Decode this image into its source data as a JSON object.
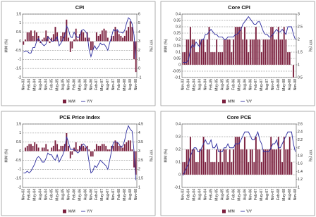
{
  "chart_data": [
    {
      "type": "bar",
      "title": "CPI",
      "y_label": "M/M (%)",
      "y2_label": "Y/Y (%)",
      "grid": true,
      "categories": [
        "Nov-03",
        null,
        null,
        "Feb-04",
        null,
        null,
        "May-04",
        null,
        null,
        "Aug-04",
        null,
        null,
        "Nov-04",
        null,
        null,
        "Feb-05",
        null,
        null,
        "May-05",
        null,
        null,
        "Aug-05",
        null,
        null,
        "Nov-05",
        null,
        null,
        "Feb-06",
        null,
        null,
        "May-06",
        null,
        null,
        "Aug-06",
        null,
        null,
        "Nov-06",
        null,
        null,
        "Feb-07",
        null,
        null,
        "May-07",
        null,
        null,
        "Aug-07",
        null,
        null,
        "Nov-07",
        null,
        null,
        "Feb-08",
        null,
        null,
        "May-08",
        null,
        null,
        "Aug-08",
        null,
        null,
        "Nov-08"
      ],
      "ylim": [
        -2,
        1.5
      ],
      "yticks": [
        -2,
        -1.5,
        -1,
        -0.5,
        0,
        0.5,
        1,
        1.5
      ],
      "y2lim": [
        -1,
        6
      ],
      "y2ticks": [
        -1,
        0,
        1,
        2,
        3,
        4,
        5,
        6
      ],
      "series": [
        {
          "name": "M/M",
          "type": "bar",
          "color": "#7a1f3d",
          "values": [
            -0.2,
            0.1,
            0.5,
            0.5,
            0.6,
            0.3,
            0.6,
            0.5,
            0.3,
            -0.1,
            0.1,
            0.2,
            0.6,
            0.3,
            -0.1,
            0.2,
            0.4,
            0.8,
            0.5,
            0.0,
            0.3,
            0.5,
            0.5,
            1.2,
            0.2,
            -0.6,
            -0.4,
            0.1,
            0.7,
            0.1,
            0.4,
            0.6,
            0.5,
            0.2,
            0.5,
            0.2,
            -0.5,
            -0.5,
            0.0,
            0.5,
            0.3,
            0.4,
            0.6,
            0.7,
            0.6,
            0.2,
            0.0,
            0.3,
            0.3,
            0.8,
            0.6,
            0.4,
            0.3,
            0.2,
            0.3,
            0.6,
            0.8,
            1.1,
            0.8,
            -1.0,
            -1.7
          ]
        },
        {
          "name": "Y/Y",
          "type": "line",
          "axis": "y2",
          "color": "#2b2b9e",
          "values": [
            1.8,
            1.9,
            1.9,
            1.7,
            1.7,
            2.3,
            2.3,
            3.0,
            3.3,
            3.0,
            2.7,
            2.5,
            2.7,
            3.5,
            3.3,
            3.0,
            3.0,
            3.2,
            3.5,
            2.5,
            2.8,
            3.2,
            3.6,
            4.7,
            4.3,
            3.5,
            3.4,
            4.0,
            3.6,
            3.4,
            3.5,
            4.2,
            4.3,
            4.1,
            3.8,
            2.1,
            1.3,
            2.0,
            2.5,
            2.1,
            2.4,
            2.8,
            2.6,
            2.7,
            2.4,
            2.0,
            2.8,
            3.5,
            4.3,
            4.1,
            4.3,
            4.0,
            4.0,
            3.9,
            4.2,
            5.0,
            5.6,
            5.4,
            4.9,
            3.7,
            1.1
          ]
        }
      ]
    },
    {
      "type": "bar",
      "title": "Core CPI",
      "y_label": "M/M (%)",
      "y2_label": "Y/Y (%)",
      "grid": true,
      "categories": [
        "Nov-03",
        null,
        null,
        "Feb-04",
        null,
        null,
        "May-04",
        null,
        null,
        "Aug-04",
        null,
        null,
        "Nov-04",
        null,
        null,
        "Feb-05",
        null,
        null,
        "May-05",
        null,
        null,
        "Aug-05",
        null,
        null,
        "Nov-05",
        null,
        null,
        "Feb-06",
        null,
        null,
        "May-06",
        null,
        null,
        "Aug-06",
        null,
        null,
        "Nov-06",
        null,
        null,
        "Feb-07",
        null,
        null,
        "May-07",
        null,
        null,
        "Aug-07",
        null,
        null,
        "Nov-07",
        null,
        null,
        "Feb-08",
        null,
        null,
        "May-08",
        null,
        null,
        "Aug-08",
        null,
        null,
        "Nov-08"
      ],
      "ylim": [
        -0.1,
        0.4
      ],
      "yticks": [
        -0.1,
        -0.05,
        0,
        0.05,
        0.1,
        0.15,
        0.2,
        0.25,
        0.3,
        0.35,
        0.4
      ],
      "y2lim": [
        0.5,
        3
      ],
      "y2ticks": [
        0.5,
        1,
        1.5,
        2,
        2.5,
        3
      ],
      "series": [
        {
          "name": "M/M",
          "type": "bar",
          "color": "#7a1f3d",
          "values": [
            0.1,
            0.1,
            0.2,
            0.2,
            0.3,
            0.2,
            0.2,
            0.1,
            0.1,
            0.2,
            0.2,
            0.2,
            0.1,
            0.2,
            0.3,
            0.1,
            0.1,
            0.1,
            0.2,
            0.1,
            0.1,
            0.1,
            0.2,
            0.2,
            0.2,
            0.2,
            0.1,
            0.2,
            0.3,
            0.3,
            0.3,
            0.3,
            0.2,
            0.3,
            0.2,
            0.1,
            0.2,
            0.2,
            0.2,
            0.3,
            0.2,
            0.2,
            0.1,
            0.2,
            0.2,
            0.2,
            0.2,
            0.3,
            0.3,
            0.2,
            0.2,
            0.3,
            0.2,
            0.2,
            0.3,
            0.2,
            0.1,
            0.1,
            0.0,
            -0.1,
            0.0
          ]
        },
        {
          "name": "Y/Y",
          "type": "line",
          "axis": "y2",
          "color": "#2b2b9e",
          "values": [
            1.1,
            1.1,
            1.1,
            1.2,
            1.6,
            1.8,
            1.7,
            1.9,
            1.8,
            1.7,
            2.0,
            2.0,
            2.2,
            2.2,
            2.3,
            2.4,
            2.3,
            2.2,
            2.2,
            2.1,
            2.1,
            2.1,
            2.0,
            2.0,
            2.1,
            2.1,
            2.1,
            2.1,
            2.2,
            2.2,
            2.3,
            2.4,
            2.6,
            2.7,
            2.8,
            2.9,
            2.8,
            2.7,
            2.6,
            2.6,
            2.7,
            2.7,
            2.5,
            2.3,
            2.2,
            2.2,
            2.1,
            2.1,
            2.2,
            2.3,
            2.4,
            2.3,
            2.3,
            2.4,
            2.3,
            2.2,
            2.5,
            2.5,
            2.5,
            2.2,
            2.0
          ]
        }
      ]
    },
    {
      "type": "bar",
      "title": "PCE Price Index",
      "y_label": "M/M (%)",
      "y2_label": "Y/Y (%)",
      "grid": true,
      "categories": [
        "Nov-03",
        null,
        null,
        "Feb-04",
        null,
        null,
        "May-04",
        null,
        null,
        "Aug-04",
        null,
        null,
        "Nov-04",
        null,
        null,
        "Feb-05",
        null,
        null,
        "May-05",
        null,
        null,
        "Aug-05",
        null,
        null,
        "Nov-05",
        null,
        null,
        "Feb-06",
        null,
        null,
        "May-06",
        null,
        null,
        "Aug-06",
        null,
        null,
        "Nov-06",
        null,
        null,
        "Feb-07",
        null,
        null,
        "May-07",
        null,
        null,
        "Aug-07",
        null,
        null,
        "Nov-07",
        null,
        null,
        "Feb-08",
        null,
        null,
        "May-08",
        null,
        null,
        "Aug-08",
        null,
        null,
        "Nov-08"
      ],
      "ylim": [
        -2,
        1.5
      ],
      "yticks": [
        -2,
        -1.5,
        -1,
        -0.5,
        0,
        0.5,
        1,
        1.5
      ],
      "y2lim": [
        1,
        4.5
      ],
      "y2ticks": [
        1,
        1.5,
        2,
        2.5,
        3,
        3.5,
        4,
        4.5
      ],
      "series": [
        {
          "name": "M/M",
          "type": "bar",
          "color": "#7a1f3d",
          "values": [
            0.0,
            0.2,
            0.3,
            0.4,
            0.4,
            0.3,
            0.5,
            0.4,
            0.2,
            0.0,
            0.2,
            0.2,
            0.4,
            0.1,
            0.0,
            0.2,
            0.3,
            0.6,
            0.4,
            0.1,
            0.3,
            0.3,
            0.4,
            1.0,
            0.3,
            -0.4,
            -0.2,
            0.2,
            0.5,
            0.1,
            0.3,
            0.4,
            0.3,
            0.2,
            0.3,
            0.1,
            -0.3,
            -0.3,
            0.1,
            0.4,
            0.3,
            0.3,
            0.4,
            0.4,
            0.3,
            0.1,
            0.1,
            0.3,
            0.3,
            0.6,
            0.5,
            0.3,
            0.3,
            0.2,
            0.4,
            0.5,
            0.6,
            0.6,
            0.1,
            -0.9,
            -1.3
          ]
        },
        {
          "name": "Y/Y",
          "type": "line",
          "axis": "y2",
          "color": "#2b2b9e",
          "values": [
            1.8,
            1.8,
            1.9,
            1.8,
            1.9,
            2.1,
            2.3,
            2.6,
            2.7,
            2.6,
            2.4,
            2.4,
            2.6,
            2.9,
            2.8,
            2.8,
            2.6,
            2.5,
            2.8,
            2.4,
            2.6,
            2.8,
            3.1,
            3.8,
            3.5,
            3.1,
            3.1,
            3.1,
            3.0,
            2.9,
            3.0,
            3.3,
            3.4,
            3.3,
            3.1,
            2.4,
            1.8,
            1.9,
            2.2,
            2.1,
            2.3,
            2.5,
            2.4,
            2.3,
            2.2,
            2.0,
            2.5,
            3.0,
            3.5,
            3.5,
            3.5,
            3.4,
            3.2,
            3.3,
            3.6,
            4.1,
            4.4,
            4.2,
            4.1,
            3.0,
            1.4
          ]
        }
      ]
    },
    {
      "type": "bar",
      "title": "Core PCE",
      "y_label": "M/M (%)",
      "y2_label": "Y/Y (%)",
      "grid": true,
      "categories": [
        "Nov-03",
        null,
        null,
        "Feb-04",
        null,
        null,
        "May-04",
        null,
        null,
        "Aug-04",
        null,
        null,
        "Nov-04",
        null,
        null,
        "Feb-05",
        null,
        null,
        "May-05",
        null,
        null,
        "Aug-05",
        null,
        null,
        "Nov-05",
        null,
        null,
        "Feb-06",
        null,
        null,
        "May-06",
        null,
        null,
        "Aug-06",
        null,
        null,
        "Nov-06",
        null,
        null,
        "Feb-07",
        null,
        null,
        "May-07",
        null,
        null,
        "Aug-07",
        null,
        null,
        "Nov-07",
        null,
        null,
        "Feb-08",
        null,
        null,
        "May-08",
        null,
        null,
        "Aug-08",
        null,
        null,
        "Nov-08"
      ],
      "ylim": [
        -0.1,
        0.4
      ],
      "yticks": [
        -0.1,
        0,
        0.1,
        0.2,
        0.3,
        0.4
      ],
      "y2lim": [
        1,
        2.6
      ],
      "y2ticks": [
        1,
        1.2,
        1.4,
        1.6,
        1.8,
        2,
        2.2,
        2.4,
        2.6
      ],
      "series": [
        {
          "name": "M/M",
          "type": "bar",
          "color": "#7a1f3d",
          "values": [
            0.1,
            0.1,
            0.2,
            0.2,
            0.3,
            0.2,
            0.2,
            0.1,
            0.1,
            0.2,
            0.2,
            0.3,
            0.1,
            0.2,
            0.2,
            0.1,
            0.1,
            0.1,
            0.2,
            0.1,
            0.2,
            0.1,
            0.2,
            0.2,
            0.1,
            0.2,
            0.1,
            0.2,
            0.3,
            0.3,
            0.3,
            0.2,
            0.2,
            0.3,
            0.2,
            0.1,
            0.2,
            0.2,
            0.1,
            0.3,
            0.2,
            0.2,
            0.1,
            0.2,
            0.2,
            0.2,
            0.2,
            0.3,
            0.2,
            0.2,
            0.2,
            0.3,
            0.2,
            0.1,
            0.3,
            0.2,
            0.2,
            0.3,
            0.1,
            0.0,
            0.0
          ]
        },
        {
          "name": "Y/Y",
          "type": "line",
          "axis": "y2",
          "color": "#2b2b9e",
          "values": [
            1.3,
            1.4,
            1.5,
            1.6,
            1.8,
            1.9,
            2.0,
            2.0,
            1.9,
            1.9,
            2.0,
            2.1,
            2.2,
            2.1,
            2.1,
            2.2,
            2.0,
            2.0,
            2.1,
            1.9,
            1.9,
            1.9,
            2.0,
            2.0,
            2.1,
            2.0,
            2.0,
            2.0,
            2.1,
            2.1,
            2.1,
            2.2,
            2.3,
            2.4,
            2.4,
            2.4,
            2.3,
            2.2,
            2.2,
            2.3,
            2.4,
            2.2,
            2.1,
            1.9,
            1.9,
            1.9,
            1.9,
            2.0,
            2.1,
            2.1,
            2.2,
            2.0,
            2.0,
            2.1,
            2.2,
            2.3,
            2.4,
            2.4,
            2.4,
            2.1,
            1.9
          ]
        }
      ]
    }
  ]
}
